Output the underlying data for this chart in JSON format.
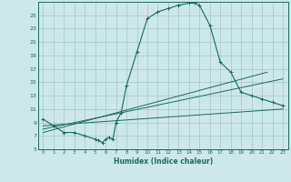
{
  "title": "",
  "xlabel": "Humidex (Indice chaleur)",
  "bg_color": "#cce8e8",
  "grid_color": "#aacccc",
  "line_color": "#1a6b5a",
  "xlim": [
    -0.5,
    23.5
  ],
  "ylim": [
    5,
    27
  ],
  "yticks": [
    5,
    7,
    9,
    11,
    13,
    15,
    17,
    19,
    21,
    23,
    25
  ],
  "xticks": [
    0,
    1,
    2,
    3,
    4,
    5,
    6,
    7,
    8,
    9,
    10,
    11,
    12,
    13,
    14,
    15,
    16,
    17,
    18,
    19,
    20,
    21,
    22,
    23
  ],
  "curve1_x": [
    0,
    1,
    2,
    3,
    4,
    5,
    5.3,
    5.7,
    6.0,
    6.3,
    6.7,
    7.0,
    7.5,
    8,
    9,
    10,
    11,
    12,
    13,
    14,
    14.5,
    15,
    16,
    17,
    18,
    19,
    20,
    21,
    22,
    23
  ],
  "curve1_y": [
    9.5,
    8.5,
    7.5,
    7.5,
    7.0,
    6.5,
    6.3,
    6.0,
    6.5,
    6.8,
    6.5,
    9.0,
    10.5,
    14.5,
    19.5,
    24.5,
    25.5,
    26.0,
    26.5,
    26.8,
    26.8,
    26.5,
    23.5,
    18.0,
    16.5,
    13.5,
    13.0,
    12.5,
    12.0,
    11.5
  ],
  "line1_x": [
    0,
    23
  ],
  "line1_y": [
    8.5,
    11.0
  ],
  "line2_x": [
    0,
    23
  ],
  "line2_y": [
    8.0,
    15.5
  ],
  "line3_x": [
    0,
    21.5
  ],
  "line3_y": [
    7.5,
    16.5
  ]
}
